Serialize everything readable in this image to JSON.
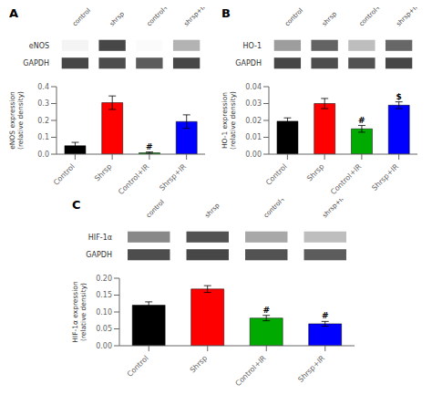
{
  "chart_data": [
    {
      "type": "heatmap",
      "title": "A",
      "x": [
        "control",
        "shrsp",
        "control+IR",
        "shrsp+IR"
      ],
      "y": [
        "eNOS",
        "GAPDH"
      ],
      "cells": [
        [
          0.05,
          0.85,
          0.02,
          0.35
        ],
        [
          0.85,
          0.82,
          0.75,
          0.85
        ]
      ]
    },
    {
      "type": "bar",
      "categories": [
        "Control",
        "Shrsp",
        "Control+IR",
        "Shrsp+IR"
      ],
      "values": [
        0.05,
        0.305,
        0.008,
        0.193
      ],
      "errors": [
        0.02,
        0.04,
        0.005,
        0.04
      ],
      "colors": [
        "#000000",
        "#ff0000",
        "#00aa00",
        "#0000ff"
      ],
      "ylabel": "eNOS expression\n(relative density)",
      "ylim": [
        0,
        0.4
      ],
      "yticks": [
        {
          "value": 0.0,
          "label": "0.0"
        },
        0.1,
        0.2,
        0.3,
        0.4
      ],
      "annotations": [
        {
          "category": "Control+IR",
          "text": "#"
        }
      ]
    },
    {
      "type": "heatmap",
      "title": "B",
      "x": [
        "control",
        "shrsp",
        "control+IR",
        "shrsp+IR"
      ],
      "y": [
        "HO-1",
        "GAPDH"
      ],
      "cells": [
        [
          0.45,
          0.72,
          0.3,
          0.7
        ],
        [
          0.85,
          0.82,
          0.8,
          0.85
        ]
      ]
    },
    {
      "type": "bar",
      "categories": [
        "Control",
        "Shrsp",
        "Control+IR",
        "Shrsp+IR"
      ],
      "values": [
        0.0195,
        0.03,
        0.015,
        0.029
      ],
      "errors": [
        0.002,
        0.003,
        0.002,
        0.002
      ],
      "colors": [
        "#000000",
        "#ff0000",
        "#00aa00",
        "#0000ff"
      ],
      "ylabel": "HO-1 expression\n(relative density)",
      "ylim": [
        0,
        0.04
      ],
      "yticks": [
        {
          "value": 0.0,
          "label": "0.00"
        },
        0.01,
        0.02,
        0.03,
        0.04
      ],
      "annotations": [
        {
          "category": "Control+IR",
          "text": "#"
        },
        {
          "category": "Shrsp+IR",
          "text": "$"
        }
      ]
    },
    {
      "type": "heatmap",
      "title": "C",
      "x": [
        "control",
        "shrsp",
        "control+IR",
        "shrsp+IR"
      ],
      "y": [
        "HIF-1α",
        "GAPDH"
      ],
      "cells": [
        [
          0.55,
          0.8,
          0.4,
          0.3
        ],
        [
          0.82,
          0.85,
          0.8,
          0.75
        ]
      ]
    },
    {
      "type": "bar",
      "categories": [
        "Control",
        "Shrsp",
        "Control+IR",
        "Shrsp+IR"
      ],
      "values": [
        0.12,
        0.168,
        0.082,
        0.065
      ],
      "errors": [
        0.01,
        0.01,
        0.008,
        0.007
      ],
      "colors": [
        "#000000",
        "#ff0000",
        "#00aa00",
        "#0000ff"
      ],
      "ylabel": "HIF-1α expression\n(relative density)",
      "ylim": [
        0,
        0.2
      ],
      "yticks": [
        {
          "value": 0.0,
          "label": "0.00"
        },
        0.05,
        {
          "value": 0.1,
          "label": "0.10"
        },
        0.15,
        {
          "value": 0.2,
          "label": "0.20"
        }
      ],
      "annotations": [
        {
          "category": "Control+IR",
          "text": "#"
        },
        {
          "category": "Shrsp+IR",
          "text": "#"
        }
      ]
    }
  ]
}
